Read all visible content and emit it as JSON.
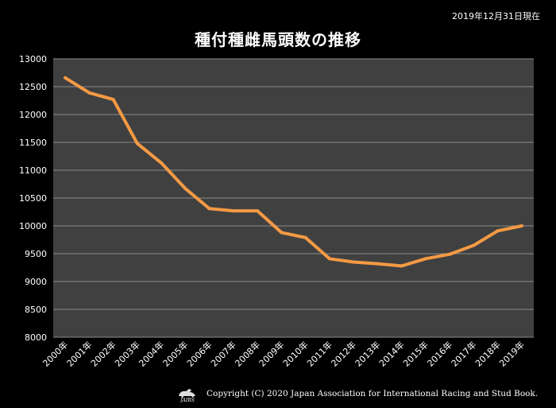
{
  "as_of": "2019年12月31日現在",
  "copyright": "Copyright (C) 2020 Japan Association for International Racing and Stud Book.",
  "logo_text": "JAIRS",
  "colors": {
    "background": "#000000",
    "plot_bg": "#404040",
    "line": "#F59A44",
    "grid": "#8A8A8A"
  },
  "chart_data": {
    "type": "line",
    "title": "種付種雌馬頭数の推移",
    "xlabel": "",
    "ylabel": "",
    "categories": [
      "2000年",
      "2001年",
      "2002年",
      "2003年",
      "2004年",
      "2005年",
      "2006年",
      "2007年",
      "2008年",
      "2009年",
      "2010年",
      "2011年",
      "2012年",
      "2013年",
      "2014年",
      "2015年",
      "2016年",
      "2017年",
      "2018年",
      "2019年"
    ],
    "series": [
      {
        "values": [
          12660,
          12390,
          12270,
          11480,
          11130,
          10670,
          10310,
          10270,
          10270,
          9880,
          9790,
          9410,
          9350,
          9320,
          9280,
          9410,
          9490,
          9650,
          9910,
          10000
        ]
      }
    ],
    "ylim": [
      8000,
      13000
    ],
    "yticks": [
      8000,
      8500,
      9000,
      9500,
      10000,
      10500,
      11000,
      11500,
      12000,
      12500,
      13000
    ],
    "grid": true,
    "legend": "none"
  }
}
